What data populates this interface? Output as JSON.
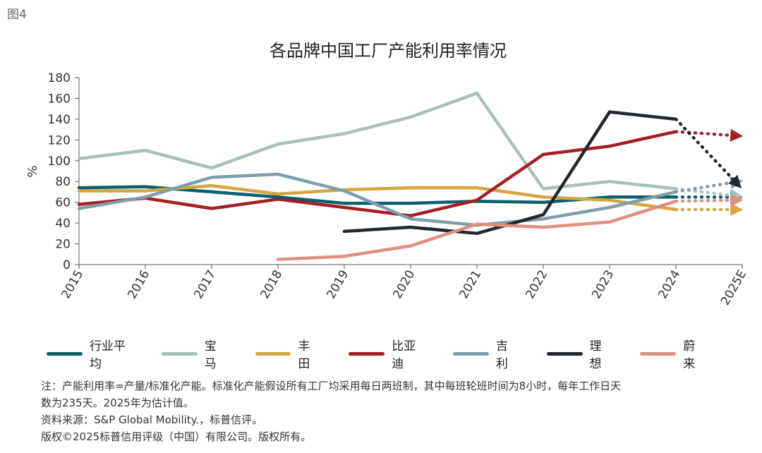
{
  "figure_label": "图4",
  "chart_data": {
    "type": "line",
    "title": "各品牌中国工厂产能利用率情况",
    "ylabel": "%",
    "xlabel": "",
    "ylim": [
      0,
      180
    ],
    "yticks": [
      0,
      20,
      40,
      60,
      80,
      100,
      120,
      140,
      160,
      180
    ],
    "categories": [
      "2015",
      "2016",
      "2017",
      "2018",
      "2019",
      "2020",
      "2021",
      "2022",
      "2023",
      "2024",
      "2025E"
    ],
    "grid": false,
    "legend_position": "bottom",
    "series": [
      {
        "name": "行业平均",
        "color": "#0b5f6e",
        "values": [
          74,
          75,
          70,
          65,
          59,
          59,
          61,
          60,
          65,
          65,
          65
        ]
      },
      {
        "name": "宝马",
        "color": "#a9c1b5",
        "values": [
          102,
          110,
          93,
          116,
          126,
          142,
          165,
          73,
          80,
          73,
          66
        ]
      },
      {
        "name": "丰田",
        "color": "#d4a540",
        "values": [
          71,
          71,
          76,
          68,
          72,
          74,
          74,
          65,
          62,
          53,
          53
        ]
      },
      {
        "name": "比亚迪",
        "color": "#a31f26",
        "values": [
          58,
          64,
          54,
          63,
          55,
          47,
          62,
          106,
          114,
          128,
          124
        ]
      },
      {
        "name": "吉利",
        "color": "#7f9eaa",
        "values": [
          54,
          65,
          84,
          87,
          71,
          44,
          38,
          44,
          55,
          70,
          80
        ]
      },
      {
        "name": "理想",
        "color": "#22272e",
        "values": [
          null,
          null,
          null,
          null,
          32,
          36,
          30,
          48,
          147,
          140,
          77
        ]
      },
      {
        "name": "蔚来",
        "color": "#dd8f83",
        "values": [
          null,
          null,
          null,
          5,
          8,
          18,
          39,
          36,
          41,
          61,
          62
        ]
      }
    ],
    "forecast_category": "2025E"
  },
  "notes": [
    "注：产能利用率=产量/标准化产能。标准化产能假设所有工厂均采用每日两班制，其中每班轮班时间为8小时，每年工作日天",
    "数为235天。2025年为估计值。",
    "资料来源：S&P Global Mobility.，标普信评。",
    "版权©2025标普信用评级（中国）有限公司。版权所有。"
  ]
}
